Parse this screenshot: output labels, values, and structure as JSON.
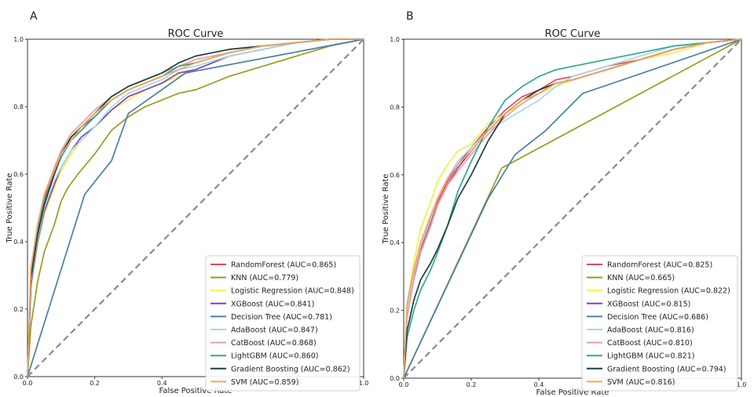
{
  "chart_data": [
    {
      "panel_label": "A",
      "type": "line",
      "title": "ROC Curve",
      "xlabel": "False Positive Rate",
      "ylabel": "True Positive Rate",
      "xlim": [
        0,
        1
      ],
      "ylim": [
        0,
        1
      ],
      "xticks": [
        "0.0",
        "0.2",
        "0.4",
        "0.6",
        "0.8",
        "1.0"
      ],
      "yticks": [
        "0.0",
        "0.2",
        "0.4",
        "0.6",
        "0.8",
        "1.0"
      ],
      "legend_position": "lower-right",
      "chance_line": {
        "x": [
          0,
          1
        ],
        "y": [
          0,
          1
        ],
        "color": "#8a8a8a"
      },
      "series": [
        {
          "name": "RandomForest (AUC=0.865)",
          "color": "#e04b5a",
          "x": [
            0,
            0.01,
            0.03,
            0.05,
            0.08,
            0.1,
            0.13,
            0.16,
            0.2,
            0.25,
            0.3,
            0.35,
            0.4,
            0.45,
            0.5,
            0.6,
            0.7,
            0.8,
            0.9,
            1
          ],
          "y": [
            0,
            0.3,
            0.44,
            0.53,
            0.61,
            0.66,
            0.71,
            0.74,
            0.77,
            0.82,
            0.85,
            0.87,
            0.89,
            0.92,
            0.93,
            0.96,
            0.98,
            0.99,
            1,
            1
          ]
        },
        {
          "name": "KNN (AUC=0.779)",
          "color": "#9a9a22",
          "x": [
            0,
            0.01,
            0.03,
            0.05,
            0.08,
            0.1,
            0.12,
            0.15,
            0.2,
            0.25,
            0.3,
            0.35,
            0.4,
            0.45,
            0.5,
            0.6,
            0.7,
            0.8,
            0.9,
            1
          ],
          "y": [
            0,
            0.15,
            0.28,
            0.37,
            0.45,
            0.52,
            0.56,
            0.6,
            0.66,
            0.73,
            0.77,
            0.8,
            0.82,
            0.84,
            0.85,
            0.89,
            0.92,
            0.95,
            0.98,
            1
          ]
        },
        {
          "name": "Logistic Regression (AUC=0.848)",
          "color": "#f2f04a",
          "x": [
            0,
            0.01,
            0.03,
            0.05,
            0.08,
            0.1,
            0.13,
            0.16,
            0.2,
            0.25,
            0.3,
            0.35,
            0.4,
            0.45,
            0.5,
            0.6,
            0.7,
            0.8,
            0.9,
            1
          ],
          "y": [
            0,
            0.26,
            0.39,
            0.48,
            0.56,
            0.61,
            0.66,
            0.7,
            0.74,
            0.79,
            0.82,
            0.85,
            0.87,
            0.89,
            0.91,
            0.95,
            0.97,
            0.99,
            1,
            1
          ]
        },
        {
          "name": "XGBoost (AUC=0.841)",
          "color": "#8a3fb5",
          "x": [
            0,
            0.01,
            0.03,
            0.05,
            0.08,
            0.1,
            0.13,
            0.16,
            0.2,
            0.25,
            0.3,
            0.35,
            0.4,
            0.45,
            0.5,
            0.6,
            0.7,
            0.8,
            0.9,
            1
          ],
          "y": [
            0,
            0.27,
            0.4,
            0.49,
            0.57,
            0.62,
            0.67,
            0.71,
            0.74,
            0.79,
            0.83,
            0.85,
            0.87,
            0.9,
            0.91,
            0.95,
            0.97,
            0.99,
            1,
            1
          ]
        },
        {
          "name": "Decision Tree (AUC=0.781)",
          "color": "#4a7fa6",
          "x": [
            0,
            0.17,
            0.25,
            0.3,
            0.47,
            1
          ],
          "y": [
            0,
            0.54,
            0.64,
            0.78,
            0.9,
            1
          ]
        },
        {
          "name": "AdaBoost (AUC=0.847)",
          "color": "#a6d8e6",
          "x": [
            0,
            0.01,
            0.03,
            0.05,
            0.08,
            0.1,
            0.13,
            0.16,
            0.2,
            0.25,
            0.3,
            0.35,
            0.4,
            0.45,
            0.5,
            0.6,
            0.7,
            0.8,
            0.9,
            1
          ],
          "y": [
            0,
            0.28,
            0.41,
            0.5,
            0.58,
            0.62,
            0.67,
            0.7,
            0.74,
            0.8,
            0.84,
            0.86,
            0.88,
            0.91,
            0.92,
            0.95,
            0.97,
            0.99,
            1,
            1
          ]
        },
        {
          "name": "CatBoost (AUC=0.868)",
          "color": "#e3a3a3",
          "x": [
            0,
            0.01,
            0.03,
            0.05,
            0.08,
            0.1,
            0.13,
            0.16,
            0.2,
            0.25,
            0.3,
            0.35,
            0.4,
            0.45,
            0.5,
            0.6,
            0.7,
            0.8,
            0.9,
            1
          ],
          "y": [
            0,
            0.31,
            0.45,
            0.54,
            0.62,
            0.67,
            0.72,
            0.75,
            0.79,
            0.83,
            0.86,
            0.88,
            0.9,
            0.92,
            0.94,
            0.96,
            0.98,
            0.99,
            1,
            1
          ]
        },
        {
          "name": "LightGBM (AUC=0.860)",
          "color": "#2fa894",
          "x": [
            0,
            0.01,
            0.03,
            0.05,
            0.08,
            0.1,
            0.13,
            0.16,
            0.2,
            0.25,
            0.3,
            0.35,
            0.4,
            0.45,
            0.5,
            0.6,
            0.7,
            0.8,
            0.9,
            1
          ],
          "y": [
            0,
            0.3,
            0.43,
            0.52,
            0.6,
            0.65,
            0.7,
            0.73,
            0.77,
            0.82,
            0.85,
            0.87,
            0.89,
            0.92,
            0.93,
            0.96,
            0.98,
            0.99,
            1,
            1
          ]
        },
        {
          "name": "Gradient Boosting (AUC=0.862)",
          "color": "#1f3d3a",
          "x": [
            0,
            0.01,
            0.03,
            0.05,
            0.08,
            0.1,
            0.13,
            0.16,
            0.2,
            0.25,
            0.3,
            0.35,
            0.4,
            0.45,
            0.5,
            0.6,
            0.7,
            0.8,
            0.9,
            1
          ],
          "y": [
            0,
            0.29,
            0.42,
            0.51,
            0.6,
            0.66,
            0.71,
            0.74,
            0.78,
            0.83,
            0.86,
            0.88,
            0.9,
            0.93,
            0.95,
            0.97,
            0.98,
            0.99,
            1,
            1
          ]
        },
        {
          "name": "SVM (AUC=0.859)",
          "color": "#f4a460",
          "x": [
            0,
            0.01,
            0.03,
            0.05,
            0.08,
            0.1,
            0.13,
            0.16,
            0.2,
            0.25,
            0.3,
            0.35,
            0.4,
            0.45,
            0.5,
            0.6,
            0.7,
            0.8,
            0.9,
            1
          ],
          "y": [
            0,
            0.32,
            0.45,
            0.54,
            0.61,
            0.66,
            0.7,
            0.74,
            0.78,
            0.82,
            0.85,
            0.87,
            0.89,
            0.91,
            0.93,
            0.96,
            0.98,
            0.99,
            1,
            1
          ]
        }
      ]
    },
    {
      "panel_label": "B",
      "type": "line",
      "title": "ROC Curve",
      "xlabel": "False Positive Rate",
      "ylabel": "True Positive Rate",
      "xlim": [
        0,
        1
      ],
      "ylim": [
        0,
        1
      ],
      "xticks": [
        "0.0",
        "0.2",
        "0.4",
        "0.6",
        "0.8",
        "1.0"
      ],
      "yticks": [
        "0.0",
        "0.2",
        "0.4",
        "0.6",
        "0.8",
        "1.0"
      ],
      "legend_position": "lower-right",
      "chance_line": {
        "x": [
          0,
          1
        ],
        "y": [
          0,
          1
        ],
        "color": "#8a8a8a"
      },
      "series": [
        {
          "name": "RandomForest (AUC=0.825)",
          "color": "#e04b5a",
          "x": [
            0,
            0.01,
            0.03,
            0.05,
            0.08,
            0.1,
            0.13,
            0.16,
            0.2,
            0.25,
            0.3,
            0.35,
            0.4,
            0.45,
            0.5,
            0.6,
            0.7,
            0.8,
            0.9,
            1
          ],
          "y": [
            0,
            0.2,
            0.3,
            0.38,
            0.46,
            0.52,
            0.58,
            0.63,
            0.68,
            0.74,
            0.79,
            0.83,
            0.85,
            0.88,
            0.89,
            0.92,
            0.94,
            0.97,
            0.99,
            1
          ]
        },
        {
          "name": "KNN (AUC=0.665)",
          "color": "#9a9a22",
          "x": [
            0,
            0.29,
            1
          ],
          "y": [
            0,
            0.62,
            1
          ]
        },
        {
          "name": "Logistic Regression (AUC=0.822)",
          "color": "#f2f04a",
          "x": [
            0,
            0.01,
            0.03,
            0.05,
            0.08,
            0.1,
            0.13,
            0.16,
            0.2,
            0.25,
            0.3,
            0.35,
            0.4,
            0.45,
            0.5,
            0.6,
            0.7,
            0.8,
            0.9,
            1
          ],
          "y": [
            0,
            0.22,
            0.34,
            0.44,
            0.52,
            0.58,
            0.63,
            0.67,
            0.69,
            0.75,
            0.78,
            0.81,
            0.84,
            0.86,
            0.88,
            0.91,
            0.94,
            0.96,
            0.99,
            1
          ]
        },
        {
          "name": "XGBoost (AUC=0.815)",
          "color": "#8a3fb5",
          "x": [
            0,
            0.01,
            0.03,
            0.05,
            0.08,
            0.1,
            0.13,
            0.16,
            0.2,
            0.25,
            0.3,
            0.35,
            0.4,
            0.45,
            0.5,
            0.6,
            0.7,
            0.8,
            0.9,
            1
          ],
          "y": [
            0,
            0.19,
            0.29,
            0.37,
            0.45,
            0.51,
            0.57,
            0.62,
            0.67,
            0.73,
            0.78,
            0.82,
            0.84,
            0.87,
            0.88,
            0.91,
            0.94,
            0.97,
            0.99,
            1
          ]
        },
        {
          "name": "Decision Tree (AUC=0.686)",
          "color": "#4a7fa6",
          "x": [
            0,
            0.25,
            0.33,
            0.42,
            0.53,
            1
          ],
          "y": [
            0,
            0.53,
            0.66,
            0.73,
            0.84,
            1
          ]
        },
        {
          "name": "AdaBoost (AUC=0.816)",
          "color": "#a6d8e6",
          "x": [
            0,
            0.01,
            0.03,
            0.05,
            0.08,
            0.1,
            0.13,
            0.16,
            0.2,
            0.25,
            0.3,
            0.35,
            0.4,
            0.45,
            0.5,
            0.6,
            0.7,
            0.8,
            0.9,
            1
          ],
          "y": [
            0,
            0.2,
            0.31,
            0.39,
            0.47,
            0.53,
            0.59,
            0.64,
            0.68,
            0.73,
            0.76,
            0.79,
            0.82,
            0.86,
            0.89,
            0.92,
            0.95,
            0.98,
            0.99,
            1
          ]
        },
        {
          "name": "CatBoost (AUC=0.810)",
          "color": "#e3a3a3",
          "x": [
            0,
            0.01,
            0.03,
            0.05,
            0.08,
            0.1,
            0.13,
            0.16,
            0.2,
            0.25,
            0.3,
            0.35,
            0.4,
            0.45,
            0.5,
            0.6,
            0.7,
            0.8,
            0.9,
            1
          ],
          "y": [
            0,
            0.18,
            0.29,
            0.37,
            0.45,
            0.51,
            0.57,
            0.61,
            0.66,
            0.72,
            0.77,
            0.81,
            0.84,
            0.87,
            0.88,
            0.91,
            0.94,
            0.97,
            0.99,
            1
          ]
        },
        {
          "name": "LightGBM (AUC=0.821)",
          "color": "#2fa894",
          "x": [
            0,
            0.01,
            0.03,
            0.05,
            0.08,
            0.1,
            0.13,
            0.16,
            0.2,
            0.25,
            0.3,
            0.35,
            0.4,
            0.45,
            0.5,
            0.6,
            0.7,
            0.8,
            0.9,
            1
          ],
          "y": [
            0,
            0.12,
            0.2,
            0.26,
            0.32,
            0.37,
            0.45,
            0.55,
            0.64,
            0.74,
            0.82,
            0.86,
            0.89,
            0.91,
            0.92,
            0.94,
            0.96,
            0.98,
            0.99,
            1
          ]
        },
        {
          "name": "Gradient Boosting (AUC=0.794)",
          "color": "#1f3d3a",
          "x": [
            0,
            0.01,
            0.03,
            0.05,
            0.08,
            0.1,
            0.13,
            0.16,
            0.2,
            0.25,
            0.3,
            0.35,
            0.4,
            0.45,
            0.5,
            0.6,
            0.7,
            0.8,
            0.9,
            1
          ],
          "y": [
            0,
            0.14,
            0.23,
            0.29,
            0.34,
            0.38,
            0.45,
            0.53,
            0.6,
            0.7,
            0.78,
            0.82,
            0.85,
            0.87,
            0.88,
            0.91,
            0.94,
            0.97,
            0.99,
            1
          ]
        },
        {
          "name": "SVM (AUC=0.816)",
          "color": "#f4a460",
          "x": [
            0,
            0.01,
            0.03,
            0.05,
            0.08,
            0.1,
            0.13,
            0.16,
            0.2,
            0.25,
            0.3,
            0.35,
            0.4,
            0.45,
            0.5,
            0.6,
            0.7,
            0.8,
            0.9,
            1
          ],
          "y": [
            0,
            0.22,
            0.32,
            0.4,
            0.48,
            0.53,
            0.59,
            0.63,
            0.67,
            0.73,
            0.78,
            0.82,
            0.84,
            0.87,
            0.88,
            0.91,
            0.94,
            0.97,
            0.99,
            1
          ]
        }
      ]
    }
  ]
}
